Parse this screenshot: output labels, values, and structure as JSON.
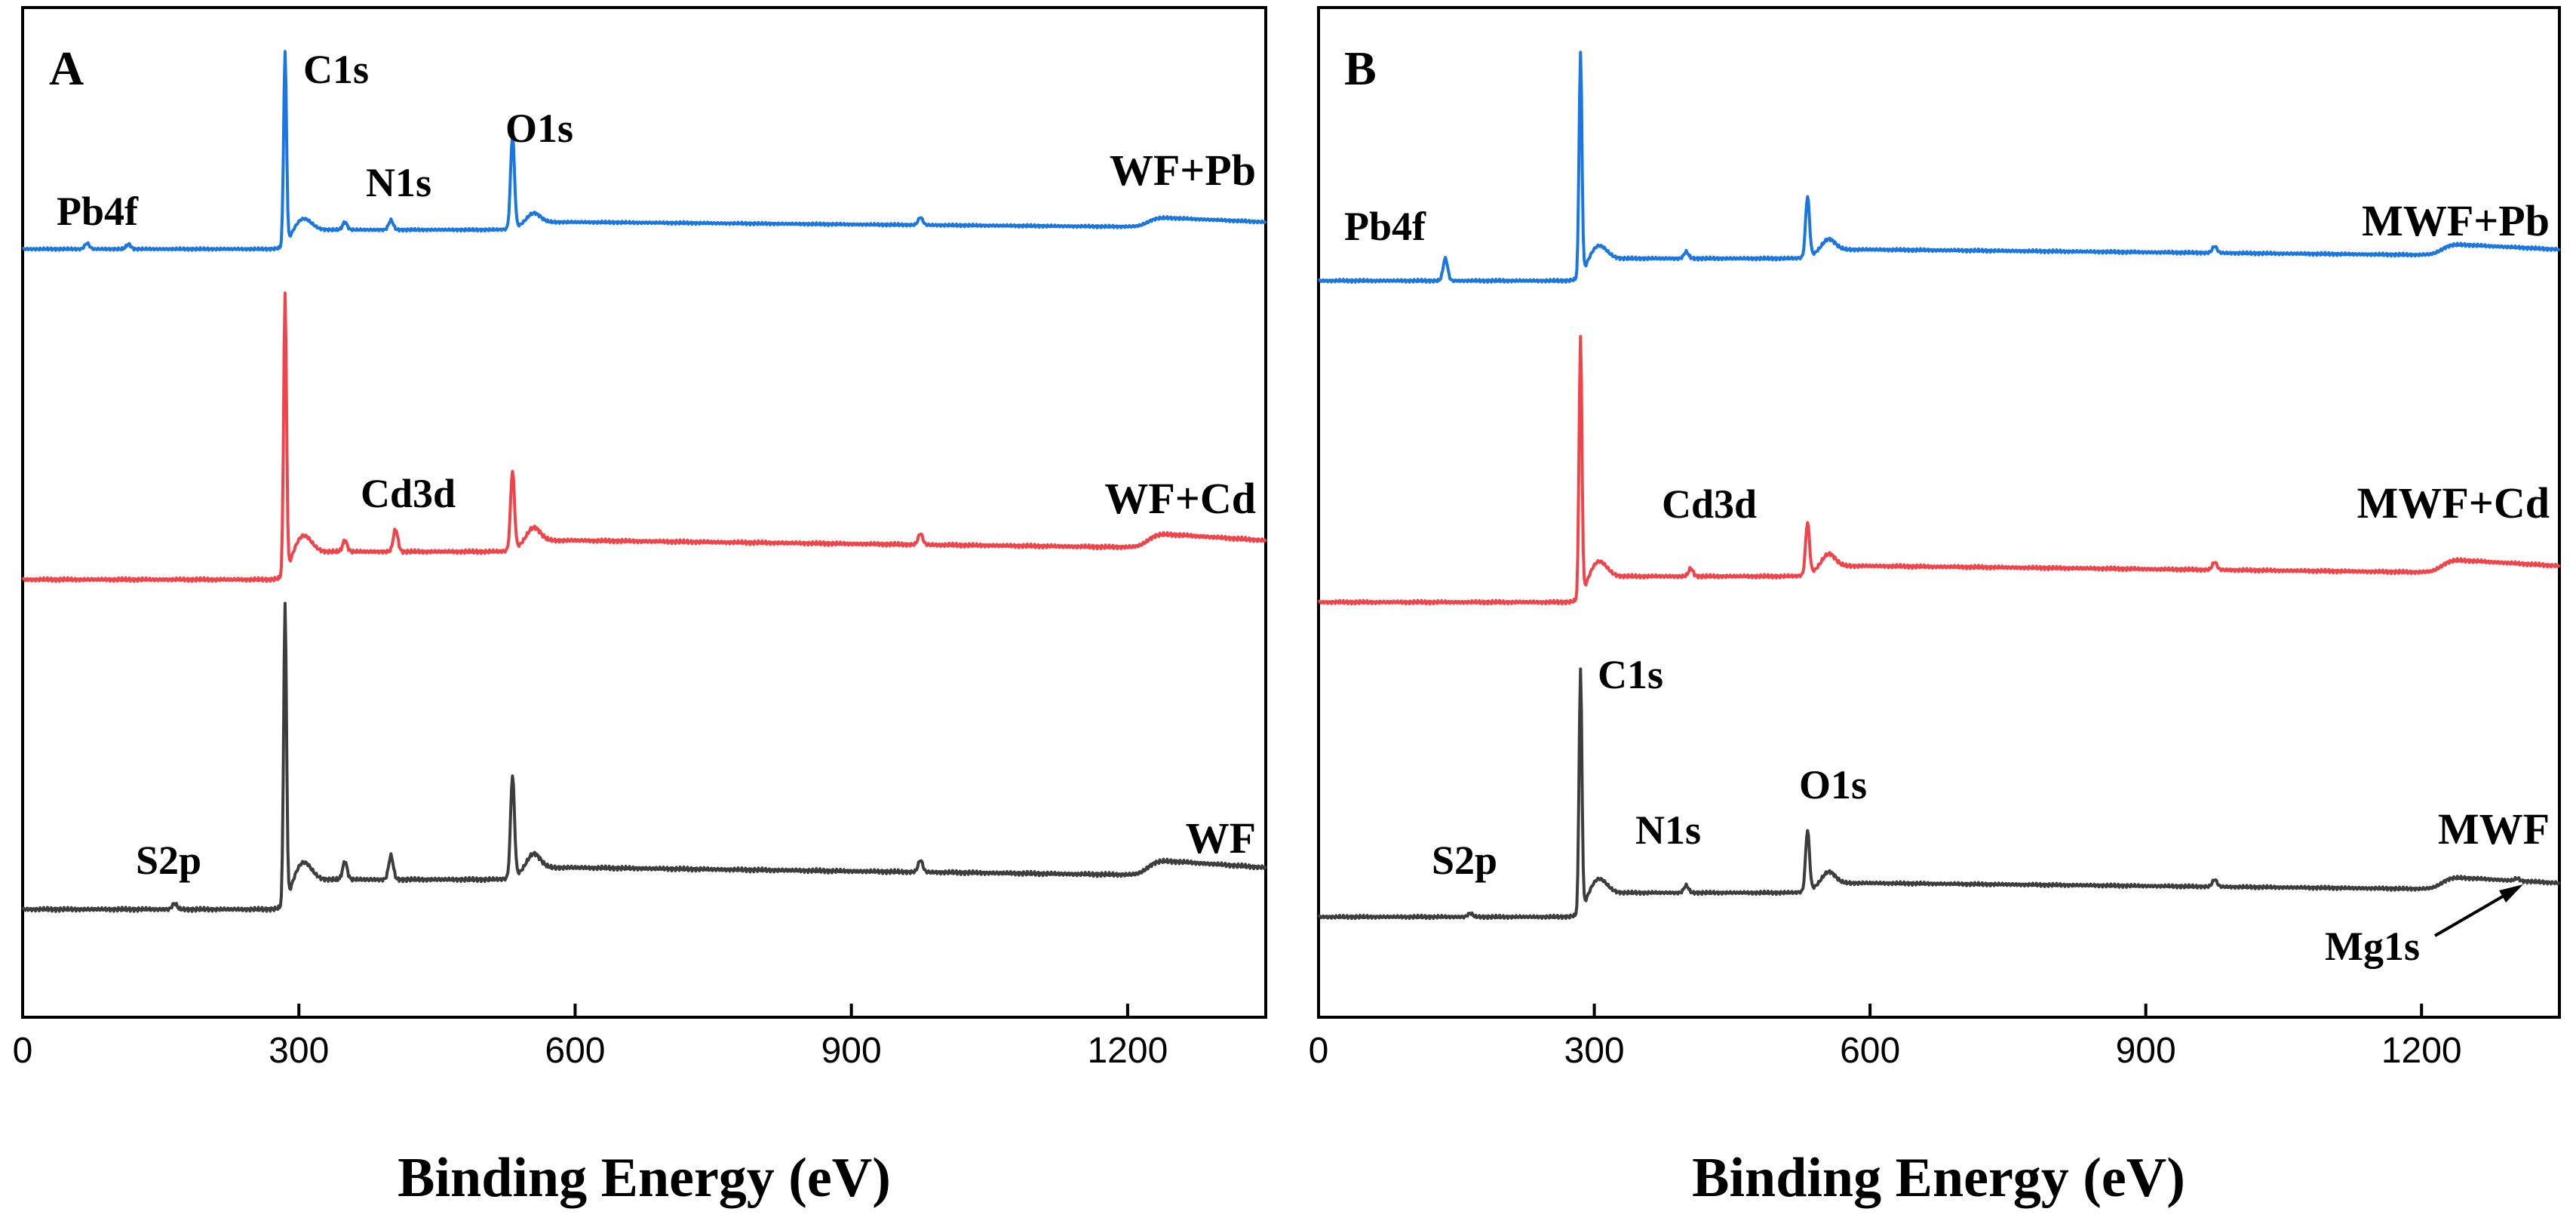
{
  "chart_data": [
    {
      "type": "line",
      "panel_label": "A",
      "xlabel": "Binding Energy (eV)",
      "xlim": [
        0,
        1350
      ],
      "xticks": [
        "0",
        "300",
        "600",
        "900",
        "1200"
      ],
      "ylabel": "",
      "legend": "none",
      "series": [
        {
          "name": "WF+Pb",
          "label": "WF+Pb",
          "color": "#1a76e0",
          "peaks": [
            [
              285,
              1.0
            ],
            [
              532,
              0.48
            ],
            [
              400,
              0.05
            ],
            [
              350,
              0.04
            ],
            [
              70,
              0.03
            ],
            [
              115,
              0.025
            ],
            [
              975,
              0.04
            ]
          ]
        },
        {
          "name": "WF+Cd",
          "label": "WF+Cd",
          "color": "#f0444a",
          "peaks": [
            [
              285,
              1.0
            ],
            [
              532,
              0.28
            ],
            [
              405,
              0.08
            ],
            [
              350,
              0.04
            ],
            [
              975,
              0.04
            ]
          ]
        },
        {
          "name": "WF",
          "label": "WF",
          "color": "#3d3d3d",
          "peaks": [
            [
              285,
              1.0
            ],
            [
              532,
              0.34
            ],
            [
              400,
              0.08
            ],
            [
              350,
              0.06
            ],
            [
              165,
              0.02
            ],
            [
              975,
              0.04
            ]
          ]
        }
      ],
      "annotations": [
        {
          "text": "C1s",
          "x": 285
        },
        {
          "text": "N1s",
          "x": 400
        },
        {
          "text": "O1s",
          "x": 532
        },
        {
          "text": "Pb4f",
          "x": 70
        },
        {
          "text": "Cd3d",
          "x": 405
        },
        {
          "text": "S2p",
          "x": 165
        }
      ]
    },
    {
      "type": "line",
      "panel_label": "B",
      "xlabel": "Binding Energy (eV)",
      "xlim": [
        0,
        1350
      ],
      "xticks": [
        "0",
        "300",
        "600",
        "900",
        "1200"
      ],
      "ylabel": "",
      "legend": "none",
      "series": [
        {
          "name": "MWF+Pb",
          "label": "MWF+Pb",
          "color": "#1a76e0",
          "peaks": [
            [
              285,
              1.0
            ],
            [
              532,
              0.27
            ],
            [
              138,
              0.1
            ],
            [
              400,
              0.03
            ],
            [
              975,
              0.03
            ]
          ]
        },
        {
          "name": "MWF+Cd",
          "label": "MWF+Cd",
          "color": "#f0444a",
          "peaks": [
            [
              285,
              1.0
            ],
            [
              532,
              0.2
            ],
            [
              405,
              0.03
            ],
            [
              975,
              0.03
            ]
          ]
        },
        {
          "name": "MWF",
          "label": "MWF",
          "color": "#3d3d3d",
          "peaks": [
            [
              285,
              1.0
            ],
            [
              532,
              0.25
            ],
            [
              400,
              0.03
            ],
            [
              165,
              0.015
            ],
            [
              975,
              0.03
            ],
            [
              1304,
              0.01
            ]
          ]
        }
      ],
      "annotations": [
        {
          "text": "Pb4f",
          "x": 138
        },
        {
          "text": "Cd3d",
          "x": 405
        },
        {
          "text": "C1s",
          "x": 285
        },
        {
          "text": "N1s",
          "x": 400
        },
        {
          "text": "O1s",
          "x": 532
        },
        {
          "text": "S2p",
          "x": 165
        },
        {
          "text": "Mg1s",
          "x": 1304
        }
      ]
    }
  ]
}
